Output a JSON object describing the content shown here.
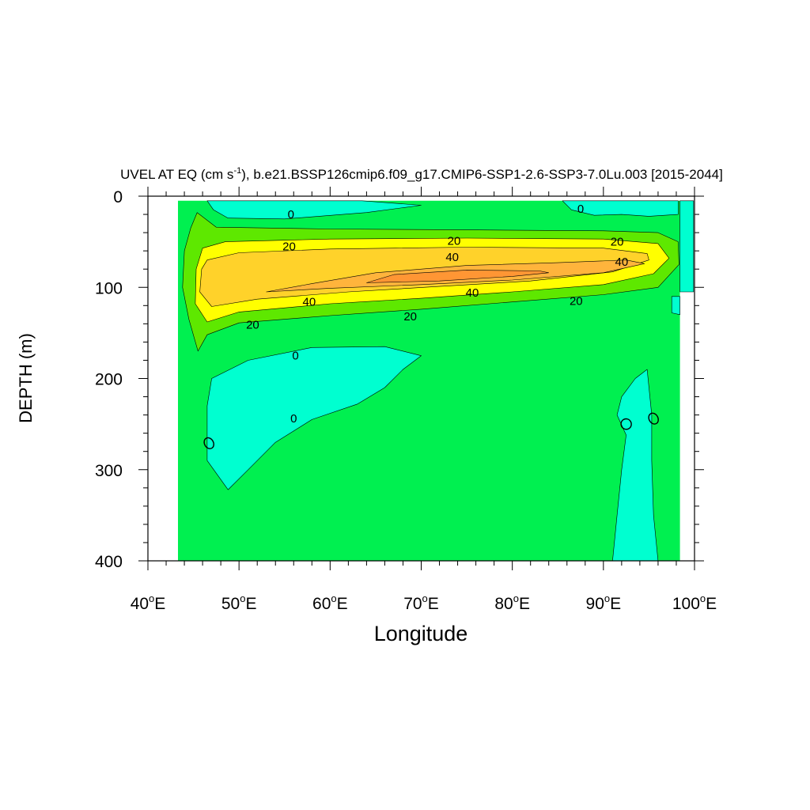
{
  "chart_data": {
    "type": "contour",
    "title": {
      "prefix": "UVEL AT EQ (cm s",
      "superscript": "-1",
      "suffix": "), b.e21.BSSP126cmip6.f09_g17.CMIP6-SSP1-2.6-SSP3-7.0Lu.003 [2015-2044]"
    },
    "xlabel": "Longitude",
    "ylabel": "DEPTH (m)",
    "xlim": [
      40,
      100
    ],
    "ylim": [
      0,
      400
    ],
    "y_inverted": true,
    "x_ticks": [
      {
        "value": 40,
        "num": "40",
        "deg": "o",
        "hemi": "E"
      },
      {
        "value": 50,
        "num": "50",
        "deg": "o",
        "hemi": "E"
      },
      {
        "value": 60,
        "num": "60",
        "deg": "o",
        "hemi": "E"
      },
      {
        "value": 70,
        "num": "70",
        "deg": "o",
        "hemi": "E"
      },
      {
        "value": 80,
        "num": "80",
        "deg": "o",
        "hemi": "E"
      },
      {
        "value": 90,
        "num": "90",
        "deg": "o",
        "hemi": "E"
      },
      {
        "value": 100,
        "num": "100",
        "deg": "o",
        "hemi": "E"
      }
    ],
    "y_ticks": [
      {
        "value": 0,
        "label": "0"
      },
      {
        "value": 100,
        "label": "100"
      },
      {
        "value": 200,
        "label": "200"
      },
      {
        "value": 300,
        "label": "300"
      },
      {
        "value": 400,
        "label": "400"
      }
    ],
    "levels": [
      {
        "range": "<0",
        "color": "#00ffd0"
      },
      {
        "range": "0-10",
        "color": "#00f050"
      },
      {
        "range": "10-20",
        "color": "#5ee800"
      },
      {
        "range": "20-30",
        "color": "#ffff00"
      },
      {
        "range": "30-40",
        "color": "#ffd22a"
      },
      {
        "range": "40-50",
        "color": "#ffb43c"
      },
      {
        "range": ">50",
        "color": "#ff9634"
      }
    ],
    "regions": [
      {
        "level": "0-10",
        "points": [
          [
            43.3,
            5
          ],
          [
            98.4,
            5
          ],
          [
            98.4,
            400
          ],
          [
            43.3,
            400
          ]
        ]
      },
      {
        "level": "<0",
        "points": [
          [
            98.4,
            5
          ],
          [
            99.9,
            5
          ],
          [
            99.9,
            105
          ],
          [
            98.4,
            105
          ]
        ]
      },
      {
        "level": "<0",
        "points": [
          [
            63.5,
            5
          ],
          [
            46.5,
            5
          ],
          [
            47.2,
            15
          ],
          [
            48.8,
            24
          ],
          [
            55,
            25
          ],
          [
            64,
            18
          ],
          [
            70,
            10
          ]
        ]
      },
      {
        "level": "<0",
        "points": [
          [
            85.5,
            5
          ],
          [
            98.2,
            5
          ],
          [
            98.2,
            20
          ],
          [
            95,
            22
          ],
          [
            92,
            20
          ],
          [
            89,
            21
          ],
          [
            86.5,
            15
          ]
        ]
      },
      {
        "level": "<0",
        "points": [
          [
            97.5,
            110
          ],
          [
            98.4,
            110
          ],
          [
            98.4,
            130
          ],
          [
            97.5,
            128
          ]
        ]
      },
      {
        "level": "<0",
        "points": [
          [
            70,
            175
          ],
          [
            66,
            165
          ],
          [
            58,
            166
          ],
          [
            51,
            180
          ],
          [
            47,
            200
          ],
          [
            46.5,
            230
          ],
          [
            46.5,
            290
          ],
          [
            48.8,
            322
          ],
          [
            51,
            300
          ],
          [
            54,
            270
          ],
          [
            58,
            245
          ],
          [
            63,
            228
          ],
          [
            66,
            210
          ],
          [
            68,
            190
          ]
        ]
      },
      {
        "level": "<0",
        "points": [
          [
            93.5,
            200
          ],
          [
            92,
            220
          ],
          [
            91.5,
            240
          ],
          [
            92.5,
            262
          ],
          [
            92,
            300
          ],
          [
            91.5,
            350
          ],
          [
            91,
            400
          ],
          [
            96,
            400
          ],
          [
            95.5,
            350
          ],
          [
            95.3,
            290
          ],
          [
            95.3,
            240
          ],
          [
            94.8,
            190
          ]
        ]
      },
      {
        "level": "10-20",
        "points": [
          [
            45.4,
            18
          ],
          [
            47.5,
            34
          ],
          [
            60,
            36
          ],
          [
            75,
            37
          ],
          [
            90,
            38
          ],
          [
            96,
            40
          ],
          [
            98.2,
            50
          ],
          [
            98.3,
            75
          ],
          [
            96,
            100
          ],
          [
            90,
            108
          ],
          [
            80,
            116
          ],
          [
            70,
            124
          ],
          [
            60,
            131
          ],
          [
            50,
            139
          ],
          [
            46.5,
            152
          ],
          [
            45.5,
            170
          ],
          [
            44.5,
            135
          ],
          [
            43.8,
            100
          ],
          [
            44,
            60
          ],
          [
            44.7,
            35
          ]
        ]
      },
      {
        "level": "20-30",
        "points": [
          [
            46,
            57
          ],
          [
            48.5,
            50
          ],
          [
            60,
            47
          ],
          [
            75,
            46
          ],
          [
            90,
            47
          ],
          [
            96,
            52
          ],
          [
            97.2,
            68
          ],
          [
            95.5,
            85
          ],
          [
            90,
            97
          ],
          [
            80,
            105
          ],
          [
            70,
            112
          ],
          [
            60,
            118
          ],
          [
            50,
            127
          ],
          [
            46.5,
            138
          ],
          [
            45.2,
            118
          ],
          [
            45.3,
            80
          ]
        ]
      },
      {
        "level": "30-40",
        "points": [
          [
            46.5,
            70
          ],
          [
            50,
            62
          ],
          [
            60,
            58
          ],
          [
            75,
            56
          ],
          [
            90,
            57
          ],
          [
            94.8,
            63
          ],
          [
            95,
            70
          ],
          [
            91,
            83
          ],
          [
            82,
            93
          ],
          [
            72,
            99
          ],
          [
            62,
            105
          ],
          [
            52,
            113
          ],
          [
            47,
            121
          ],
          [
            45.7,
            105
          ],
          [
            45.9,
            80
          ]
        ]
      },
      {
        "level": "40-50",
        "points": [
          [
            53,
            105
          ],
          [
            58,
            96
          ],
          [
            65,
            84
          ],
          [
            75,
            76
          ],
          [
            85,
            73
          ],
          [
            92.5,
            70
          ],
          [
            94.5,
            74
          ],
          [
            90,
            84
          ],
          [
            80,
            92
          ],
          [
            70,
            97
          ],
          [
            60,
            101
          ]
        ]
      },
      {
        "level": ">50",
        "points": [
          [
            64,
            95
          ],
          [
            67,
            86
          ],
          [
            75,
            81
          ],
          [
            83,
            82
          ],
          [
            84,
            84
          ],
          [
            80,
            88
          ],
          [
            72,
            93
          ]
        ]
      }
    ],
    "contour_labels": [
      {
        "x": 55.7,
        "y": 20,
        "label": "0"
      },
      {
        "x": 87.5,
        "y": 14,
        "label": "0"
      },
      {
        "x": 56.2,
        "y": 175,
        "label": "0"
      },
      {
        "x": 56,
        "y": 244,
        "label": "0"
      },
      {
        "x": 55.5,
        "y": 55,
        "label": "20"
      },
      {
        "x": 73.6,
        "y": 49,
        "label": "20"
      },
      {
        "x": 91.5,
        "y": 50,
        "label": "20"
      },
      {
        "x": 87,
        "y": 115,
        "label": "20"
      },
      {
        "x": 68.8,
        "y": 132,
        "label": "20"
      },
      {
        "x": 51.5,
        "y": 141,
        "label": "20"
      },
      {
        "x": 73.4,
        "y": 67,
        "label": "40"
      },
      {
        "x": 92,
        "y": 72,
        "label": "40"
      },
      {
        "x": 75.6,
        "y": 106,
        "label": "40"
      },
      {
        "x": 57.7,
        "y": 116,
        "label": "40"
      }
    ],
    "small_loops": [
      {
        "x": 46.7,
        "y": 271,
        "rx": 0.5,
        "ry": 3.5
      },
      {
        "x": 92.5,
        "y": 250,
        "rx": 0.45,
        "ry": 4
      },
      {
        "x": 95.5,
        "y": 244,
        "rx": 0.5,
        "ry": 3.5
      }
    ]
  }
}
